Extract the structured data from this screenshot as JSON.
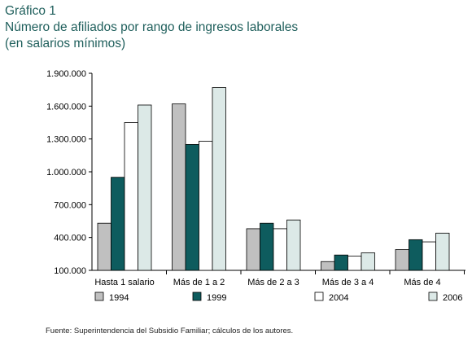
{
  "header": {
    "title": "Gráfico 1",
    "subtitle": "Número de afiliados por rango de ingresos laborales",
    "subtitle2": "(en salarios mínimos)"
  },
  "footer": {
    "source": "Fuente: Superintendencia del Subsidio Familiar; cálculos de los autores."
  },
  "chart_data": {
    "type": "bar",
    "title": "Número de afiliados por rango de ingresos laborales",
    "categories": [
      "Hasta 1 salario",
      "Más de 1 a 2",
      "Más de 2 a 3",
      "Más de 3 a 4",
      "Más de 4"
    ],
    "ylim": [
      100000,
      1900000
    ],
    "yticks": [
      100000,
      400000,
      700000,
      1000000,
      1300000,
      1600000,
      1900000
    ],
    "ytick_labels": [
      "100.000",
      "400.000",
      "700.000",
      "1.000.000",
      "1.300.000",
      "1.600.000",
      "1.900.000"
    ],
    "legend_position": "bottom",
    "grid": false,
    "series": [
      {
        "name": "1994",
        "color": "#c0c0c0",
        "values": [
          530000,
          1620000,
          480000,
          180000,
          290000
        ]
      },
      {
        "name": "1999",
        "color": "#0e5c5e",
        "values": [
          950000,
          1250000,
          530000,
          240000,
          380000
        ]
      },
      {
        "name": "2004",
        "color": "#ffffff",
        "values": [
          1450000,
          1280000,
          480000,
          230000,
          360000
        ]
      },
      {
        "name": "2006",
        "color": "#dce9e7",
        "values": [
          1610000,
          1770000,
          560000,
          260000,
          440000
        ]
      }
    ]
  }
}
